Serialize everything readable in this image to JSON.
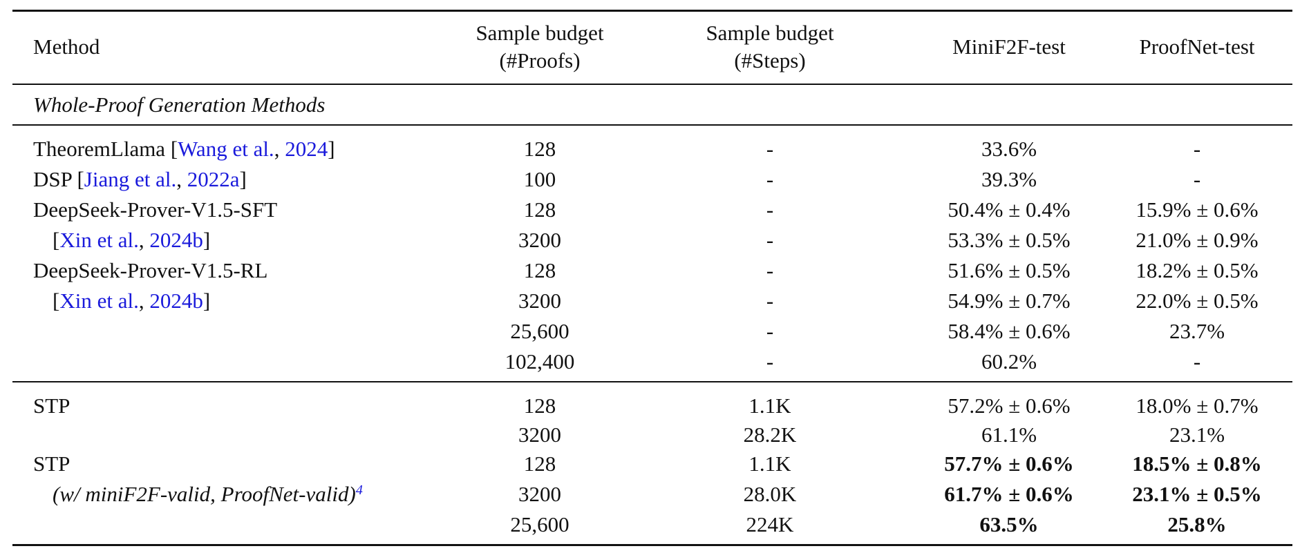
{
  "headers": {
    "method": "Method",
    "proofs_line1": "Sample budget",
    "proofs_line2": "(#Proofs)",
    "steps_line1": "Sample budget",
    "steps_line2": "(#Steps)",
    "minif2f": "MiniF2F-test",
    "proofnet": "ProofNet-test"
  },
  "section_title": "Whole-Proof Generation Methods",
  "rows": [
    {
      "name_pre": "TheoremLlama [",
      "cite_author": "Wang et al.",
      "cite_sep": ", ",
      "cite_year": "2024",
      "name_post": "]",
      "proofs": "128",
      "steps": "-",
      "minif2f": "33.6%",
      "proofnet": "-"
    },
    {
      "name_pre": "DSP [",
      "cite_author": "Jiang et al.",
      "cite_sep": ", ",
      "cite_year": "2022a",
      "name_post": "]",
      "proofs": "100",
      "steps": "-",
      "minif2f": "39.3%",
      "proofnet": "-"
    },
    {
      "name": "DeepSeek-Prover-V1.5-SFT",
      "proofs": "128",
      "steps": "-",
      "minif2f": "50.4% ± 0.4%",
      "proofnet": "15.9% ± 0.6%"
    },
    {
      "name_pre": "[",
      "cite_author": "Xin et al.",
      "cite_sep": ", ",
      "cite_year": "2024b",
      "name_post": "]",
      "proofs": "3200",
      "steps": "-",
      "minif2f": "53.3% ± 0.5%",
      "proofnet": "21.0% ± 0.9%"
    },
    {
      "name": "DeepSeek-Prover-V1.5-RL",
      "proofs": "128",
      "steps": "-",
      "minif2f": "51.6% ± 0.5%",
      "proofnet": "18.2% ± 0.5%"
    },
    {
      "name_pre": "[",
      "cite_author": "Xin et al.",
      "cite_sep": ", ",
      "cite_year": "2024b",
      "name_post": "]",
      "proofs": "3200",
      "steps": "-",
      "minif2f": "54.9% ± 0.7%",
      "proofnet": "22.0% ± 0.5%"
    },
    {
      "name": "",
      "proofs": "25,600",
      "steps": "-",
      "minif2f": "58.4% ± 0.6%",
      "proofnet": "23.7%"
    },
    {
      "name": "",
      "proofs": "102,400",
      "steps": "-",
      "minif2f": "60.2%",
      "proofnet": "-"
    }
  ],
  "stp_rows": [
    {
      "name": "STP",
      "proofs": "128",
      "steps": "1.1K",
      "minif2f": "57.2% ± 0.6%",
      "proofnet": "18.0% ± 0.7%"
    },
    {
      "name": "",
      "proofs": "3200",
      "steps": "28.2K",
      "minif2f": "61.1%",
      "proofnet": "23.1%"
    },
    {
      "name": "STP",
      "proofs": "128",
      "steps": "1.1K",
      "minif2f": "57.7% ± 0.6%",
      "proofnet": "18.5% ± 0.8%"
    },
    {
      "name": "(w/ miniF2F-valid, ProofNet-valid)",
      "footnote": "4",
      "proofs": "3200",
      "steps": "28.0K",
      "minif2f": "61.7% ± 0.6%",
      "proofnet": "23.1% ± 0.5%"
    },
    {
      "name": "",
      "proofs": "25,600",
      "steps": "224K",
      "minif2f": "63.5%",
      "proofnet": "25.8%"
    }
  ],
  "colors": {
    "citation": "#1a1adb",
    "text": "#111111",
    "rule": "#111111"
  }
}
